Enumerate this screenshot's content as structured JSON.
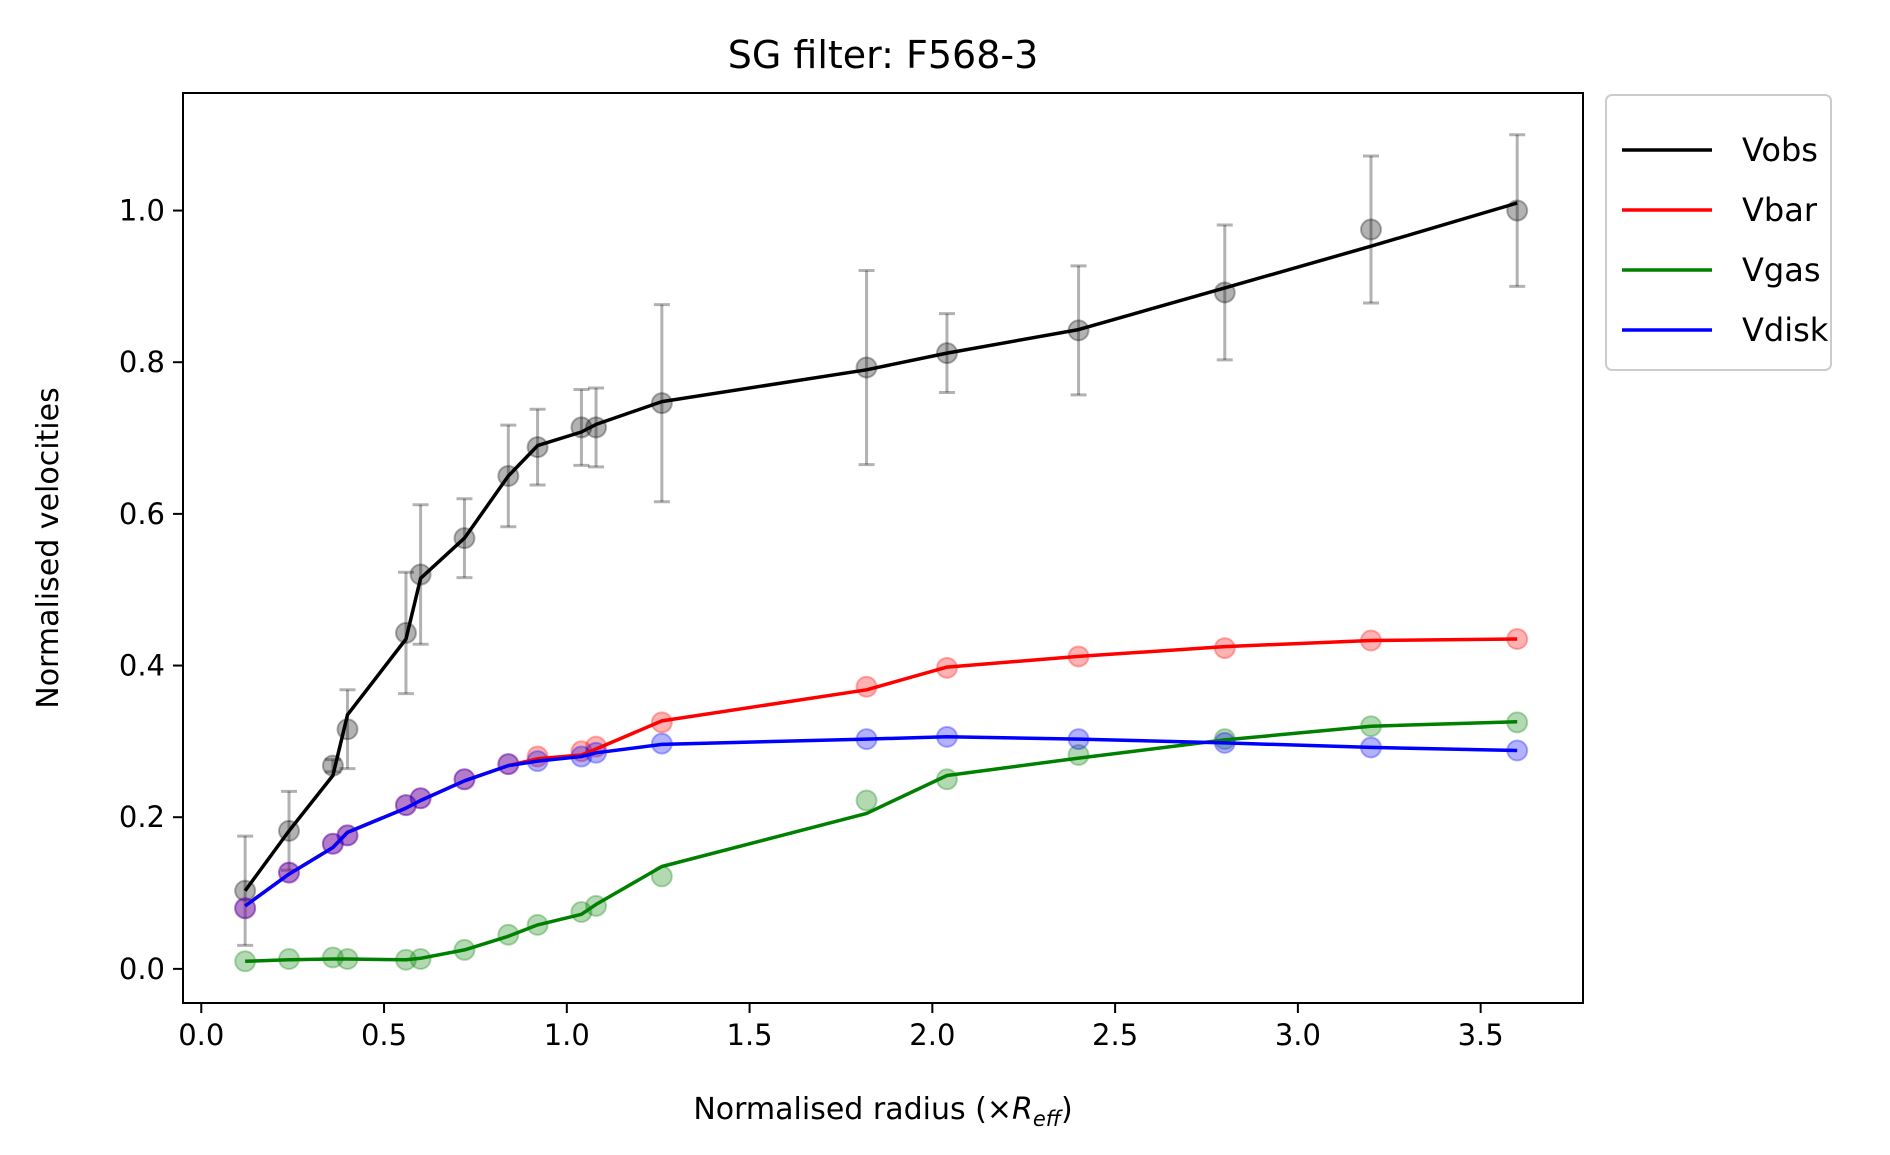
{
  "chart_data": {
    "type": "line",
    "title": "SG filter: F568-3",
    "xlabel": {
      "prefix": "Normalised radius (×",
      "symbol": "R",
      "subscript": "eff",
      "suffix": ")"
    },
    "ylabel": "Normalised velocities",
    "xlim": [
      -0.05,
      3.78
    ],
    "ylim": [
      -0.045,
      1.155
    ],
    "xticks": [
      0.0,
      0.5,
      1.0,
      1.5,
      2.0,
      2.5,
      3.0,
      3.5
    ],
    "xtick_labels": [
      "0.0",
      "0.5",
      "1.0",
      "1.5",
      "2.0",
      "2.5",
      "3.0",
      "3.5"
    ],
    "yticks": [
      0.0,
      0.2,
      0.4,
      0.6,
      0.8,
      1.0
    ],
    "ytick_labels": [
      "0.0",
      "0.2",
      "0.4",
      "0.6",
      "0.8",
      "1.0"
    ],
    "legend_position": "outside-upper-right",
    "x": [
      0.12,
      0.24,
      0.36,
      0.4,
      0.56,
      0.6,
      0.72,
      0.84,
      0.92,
      1.04,
      1.08,
      1.26,
      1.82,
      2.04,
      2.4,
      2.8,
      3.2,
      3.6
    ],
    "series": [
      {
        "name": "Vobs",
        "color": "#000000",
        "points": [
          0.103,
          0.182,
          0.268,
          0.316,
          0.443,
          0.52,
          0.568,
          0.65,
          0.688,
          0.714,
          0.714,
          0.746,
          0.793,
          0.812,
          0.842,
          0.892,
          0.975,
          1.0
        ],
        "line": [
          0.103,
          0.182,
          0.255,
          0.335,
          0.435,
          0.515,
          0.568,
          0.65,
          0.69,
          0.708,
          0.718,
          0.748,
          0.79,
          0.812,
          0.843,
          0.898,
          0.953,
          1.01
        ],
        "errors": [
          0.072,
          0.052,
          0.008,
          0.052,
          0.08,
          0.092,
          0.052,
          0.067,
          0.05,
          0.05,
          0.052,
          0.13,
          0.128,
          0.052,
          0.085,
          0.089,
          0.097,
          0.1
        ]
      },
      {
        "name": "Vbar",
        "color": "#ff0000",
        "points": [
          0.08,
          0.127,
          0.165,
          0.176,
          0.216,
          0.225,
          0.25,
          0.27,
          0.28,
          0.287,
          0.293,
          0.325,
          0.372,
          0.397,
          0.412,
          0.423,
          0.433,
          0.435
        ],
        "line": [
          0.083,
          0.125,
          0.16,
          0.18,
          0.212,
          0.222,
          0.248,
          0.268,
          0.277,
          0.282,
          0.29,
          0.327,
          0.368,
          0.398,
          0.412,
          0.425,
          0.433,
          0.435
        ]
      },
      {
        "name": "Vgas",
        "color": "#008000",
        "points": [
          0.01,
          0.013,
          0.015,
          0.013,
          0.012,
          0.013,
          0.025,
          0.045,
          0.058,
          0.075,
          0.083,
          0.122,
          0.222,
          0.25,
          0.282,
          0.303,
          0.32,
          0.325
        ],
        "line": [
          0.01,
          0.012,
          0.013,
          0.013,
          0.012,
          0.014,
          0.025,
          0.043,
          0.058,
          0.072,
          0.085,
          0.135,
          0.205,
          0.255,
          0.278,
          0.302,
          0.32,
          0.326
        ]
      },
      {
        "name": "Vdisk",
        "color": "#0000ff",
        "points": [
          0.08,
          0.127,
          0.165,
          0.176,
          0.216,
          0.225,
          0.25,
          0.27,
          0.274,
          0.28,
          0.285,
          0.297,
          0.303,
          0.306,
          0.303,
          0.298,
          0.292,
          0.288
        ],
        "line": [
          0.083,
          0.125,
          0.16,
          0.18,
          0.212,
          0.222,
          0.248,
          0.268,
          0.274,
          0.28,
          0.285,
          0.296,
          0.303,
          0.306,
          0.303,
          0.298,
          0.292,
          0.288
        ]
      }
    ]
  }
}
